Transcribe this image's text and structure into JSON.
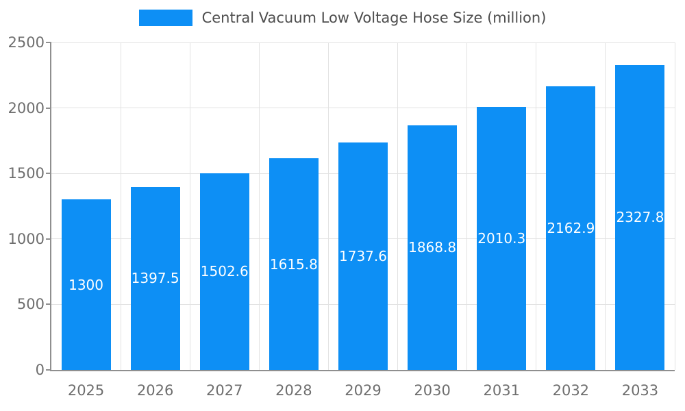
{
  "chart_data": {
    "type": "bar",
    "title": "Central Vacuum Low Voltage Hose Size (million)",
    "categories": [
      "2025",
      "2026",
      "2027",
      "2028",
      "2029",
      "2030",
      "2031",
      "2032",
      "2033"
    ],
    "values": [
      1300,
      1397.5,
      1502.6,
      1615.8,
      1737.6,
      1868.8,
      2010.3,
      2162.9,
      2327.8
    ],
    "value_labels": [
      "1300",
      "1397.5",
      "1502.6",
      "1615.8",
      "1737.6",
      "1868.8",
      "2010.3",
      "2162.9",
      "2327.8"
    ],
    "xlabel": "",
    "ylabel": "",
    "ylim": [
      0,
      2500
    ],
    "yticks": [
      0,
      500,
      1000,
      1500,
      2000,
      2500
    ],
    "grid": true,
    "legend_position": "top-center",
    "bar_color": "#0d8ff5",
    "value_label_color": "#ffffff",
    "tick_label_color": "#6e6e6e",
    "grid_color": "#e2e2e2",
    "axis_color": "#8f8f8f",
    "title_color": "#4d4d4d",
    "background_color": "#ffffff"
  }
}
